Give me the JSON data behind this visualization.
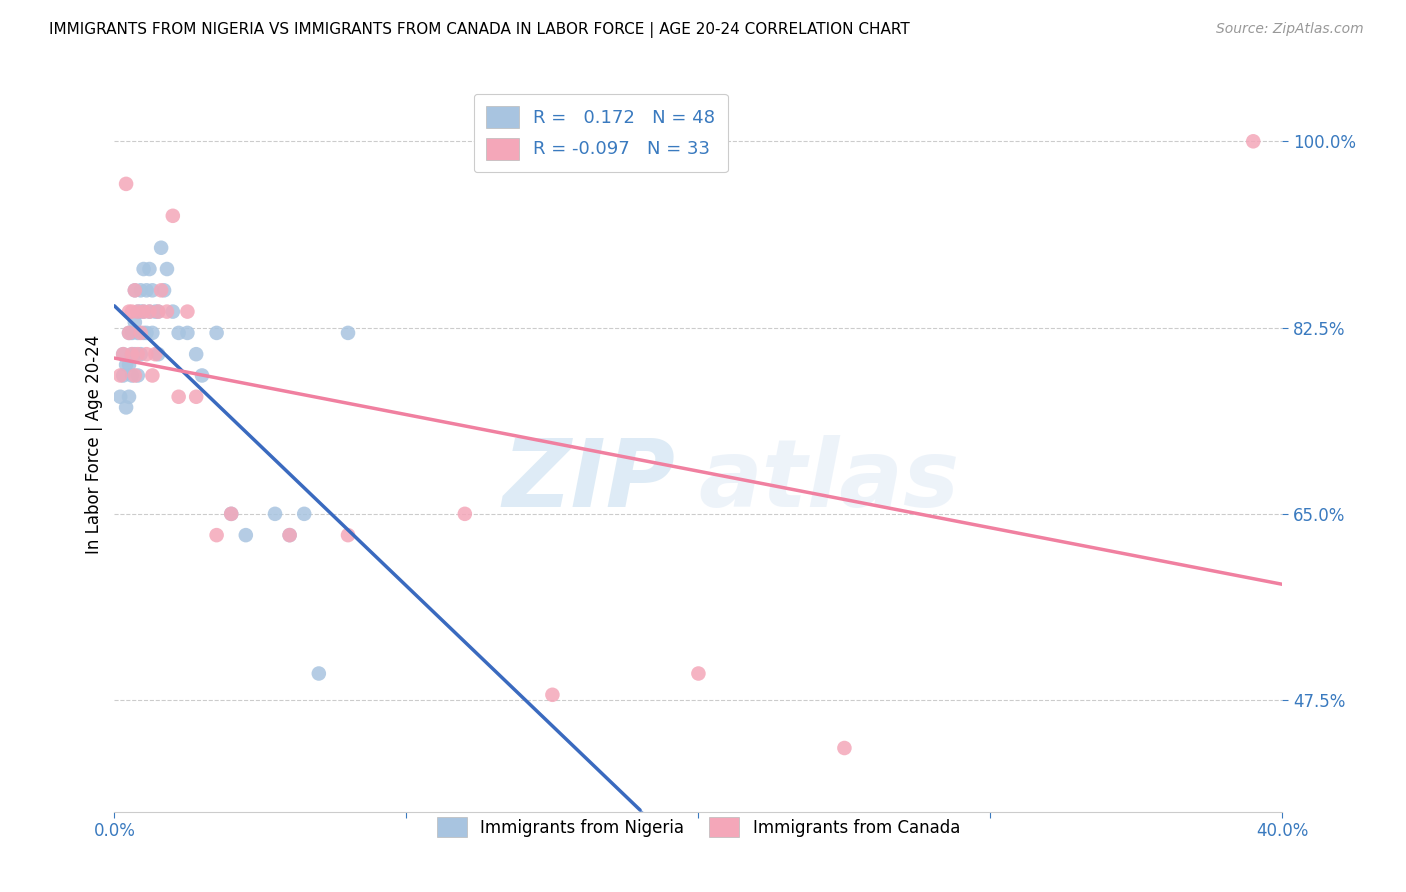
{
  "title": "IMMIGRANTS FROM NIGERIA VS IMMIGRANTS FROM CANADA IN LABOR FORCE | AGE 20-24 CORRELATION CHART",
  "source": "Source: ZipAtlas.com",
  "ylabel": "In Labor Force | Age 20-24",
  "ytick_labels": [
    "100.0%",
    "82.5%",
    "65.0%",
    "47.5%"
  ],
  "ytick_values": [
    1.0,
    0.825,
    0.65,
    0.475
  ],
  "xlim": [
    0.0,
    0.4
  ],
  "ylim": [
    0.37,
    1.06
  ],
  "r_nigeria": 0.172,
  "n_nigeria": 48,
  "r_canada": -0.097,
  "n_canada": 33,
  "nigeria_color": "#a8c4e0",
  "canada_color": "#f4a7b9",
  "nigeria_line_color": "#3a6abf",
  "canada_line_color": "#f080a0",
  "nigeria_legend_color": "#a8c4e0",
  "canada_legend_color": "#f4a7b9",
  "watermark_zip": "ZIP",
  "watermark_atlas": "atlas",
  "nigeria_x": [
    0.002,
    0.003,
    0.003,
    0.004,
    0.004,
    0.005,
    0.005,
    0.005,
    0.006,
    0.006,
    0.006,
    0.007,
    0.007,
    0.007,
    0.008,
    0.008,
    0.008,
    0.009,
    0.009,
    0.009,
    0.01,
    0.01,
    0.01,
    0.011,
    0.011,
    0.012,
    0.012,
    0.013,
    0.013,
    0.014,
    0.015,
    0.015,
    0.016,
    0.017,
    0.018,
    0.02,
    0.022,
    0.025,
    0.028,
    0.03,
    0.035,
    0.04,
    0.045,
    0.055,
    0.06,
    0.065,
    0.07,
    0.08
  ],
  "nigeria_y": [
    0.76,
    0.78,
    0.8,
    0.75,
    0.79,
    0.76,
    0.79,
    0.82,
    0.78,
    0.8,
    0.82,
    0.8,
    0.83,
    0.86,
    0.78,
    0.82,
    0.84,
    0.8,
    0.84,
    0.86,
    0.82,
    0.84,
    0.88,
    0.82,
    0.86,
    0.84,
    0.88,
    0.82,
    0.86,
    0.84,
    0.8,
    0.84,
    0.9,
    0.86,
    0.88,
    0.84,
    0.82,
    0.82,
    0.8,
    0.78,
    0.82,
    0.65,
    0.63,
    0.65,
    0.63,
    0.65,
    0.5,
    0.82
  ],
  "canada_x": [
    0.002,
    0.003,
    0.004,
    0.005,
    0.005,
    0.006,
    0.006,
    0.007,
    0.007,
    0.008,
    0.008,
    0.009,
    0.01,
    0.011,
    0.012,
    0.013,
    0.014,
    0.015,
    0.016,
    0.018,
    0.02,
    0.022,
    0.025,
    0.028,
    0.035,
    0.04,
    0.06,
    0.08,
    0.12,
    0.15,
    0.2,
    0.25,
    0.39
  ],
  "canada_y": [
    0.78,
    0.8,
    0.96,
    0.82,
    0.84,
    0.8,
    0.84,
    0.78,
    0.86,
    0.8,
    0.84,
    0.82,
    0.84,
    0.8,
    0.84,
    0.78,
    0.8,
    0.84,
    0.86,
    0.84,
    0.93,
    0.76,
    0.84,
    0.76,
    0.63,
    0.65,
    0.63,
    0.63,
    0.65,
    0.48,
    0.5,
    0.43,
    1.0
  ]
}
